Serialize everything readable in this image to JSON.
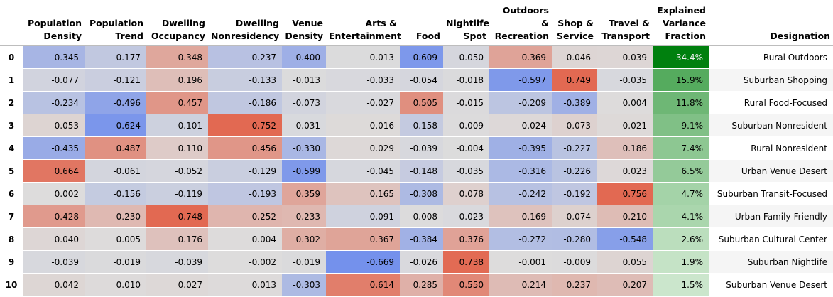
{
  "columns": [
    "Population Density",
    "Population Trend",
    "Dwelling Occupancy",
    "Dwelling Nonresidency",
    "Venue Density",
    "Arts & Entertainment",
    "Food",
    "Nightlife Spot",
    "Outdoors & Recreation",
    "Shop & Service",
    "Travel & Transport"
  ],
  "header_lines": [
    [
      "Population",
      "Density"
    ],
    [
      "Population",
      "Trend"
    ],
    [
      "Dwelling",
      "Occupancy"
    ],
    [
      "Dwelling",
      "Nonresidency"
    ],
    [
      "Venue",
      "Density"
    ],
    [
      "Arts &",
      "Entertainment"
    ],
    [
      "Food"
    ],
    [
      "Nightlife",
      "Spot"
    ],
    [
      "Outdoors",
      "&",
      "Recreation"
    ],
    [
      "Shop &",
      "Service"
    ],
    [
      "Travel &",
      "Transport"
    ]
  ],
  "fraction_header_lines": [
    "Explained",
    "Variance",
    "Fraction"
  ],
  "designation_header": "Designation",
  "rows": [
    {
      "index": "0",
      "values": [
        "-0.345",
        "-0.177",
        "0.348",
        "-0.237",
        "-0.400",
        "-0.013",
        "-0.609",
        "-0.050",
        "0.369",
        "0.046",
        "0.039"
      ],
      "fraction": "34.4%",
      "fraction_value": 0.344,
      "designation": "Rural Outdoors"
    },
    {
      "index": "1",
      "values": [
        "-0.077",
        "-0.121",
        "0.196",
        "-0.133",
        "-0.013",
        "-0.033",
        "-0.054",
        "-0.018",
        "-0.597",
        "0.749",
        "-0.035"
      ],
      "fraction": "15.9%",
      "fraction_value": 0.159,
      "designation": "Suburban Shopping"
    },
    {
      "index": "2",
      "values": [
        "-0.234",
        "-0.496",
        "0.457",
        "-0.186",
        "-0.073",
        "-0.027",
        "0.505",
        "-0.015",
        "-0.209",
        "-0.389",
        "0.004"
      ],
      "fraction": "11.8%",
      "fraction_value": 0.118,
      "designation": "Rural Food-Focused"
    },
    {
      "index": "3",
      "values": [
        "0.053",
        "-0.624",
        "-0.101",
        "0.752",
        "-0.031",
        "0.016",
        "-0.158",
        "-0.009",
        "0.024",
        "0.073",
        "0.021"
      ],
      "fraction": "9.1%",
      "fraction_value": 0.091,
      "designation": "Suburban Nonresident"
    },
    {
      "index": "4",
      "values": [
        "-0.435",
        "0.487",
        "0.110",
        "0.456",
        "-0.330",
        "0.029",
        "-0.039",
        "-0.004",
        "-0.395",
        "-0.227",
        "0.186"
      ],
      "fraction": "7.4%",
      "fraction_value": 0.074,
      "designation": "Rural Nonresident"
    },
    {
      "index": "5",
      "values": [
        "0.664",
        "-0.061",
        "-0.052",
        "-0.129",
        "-0.599",
        "-0.045",
        "-0.148",
        "-0.035",
        "-0.316",
        "-0.226",
        "0.023"
      ],
      "fraction": "6.5%",
      "fraction_value": 0.065,
      "designation": "Urban Venue Desert"
    },
    {
      "index": "6",
      "values": [
        "0.002",
        "-0.156",
        "-0.119",
        "-0.193",
        "0.359",
        "0.165",
        "-0.308",
        "0.078",
        "-0.242",
        "-0.192",
        "0.756"
      ],
      "fraction": "4.7%",
      "fraction_value": 0.047,
      "designation": "Suburban Transit-Focused"
    },
    {
      "index": "7",
      "values": [
        "0.428",
        "0.230",
        "0.748",
        "0.252",
        "0.233",
        "-0.091",
        "-0.008",
        "-0.023",
        "0.169",
        "0.074",
        "0.210"
      ],
      "fraction": "4.1%",
      "fraction_value": 0.041,
      "designation": "Urban Family-Friendly"
    },
    {
      "index": "8",
      "values": [
        "0.040",
        "0.005",
        "0.176",
        "0.004",
        "0.302",
        "0.367",
        "-0.384",
        "0.376",
        "-0.272",
        "-0.280",
        "-0.548"
      ],
      "fraction": "2.6%",
      "fraction_value": 0.026,
      "designation": "Suburban Cultural Center"
    },
    {
      "index": "9",
      "values": [
        "-0.039",
        "-0.019",
        "-0.039",
        "-0.002",
        "-0.019",
        "-0.669",
        "-0.026",
        "0.738",
        "-0.001",
        "-0.009",
        "0.055"
      ],
      "fraction": "1.9%",
      "fraction_value": 0.019,
      "designation": "Suburban Nightlife"
    },
    {
      "index": "10",
      "values": [
        "0.042",
        "0.010",
        "0.027",
        "0.013",
        "-0.303",
        "0.614",
        "0.285",
        "0.550",
        "0.214",
        "0.237",
        "0.207"
      ],
      "fraction": "1.5%",
      "fraction_value": 0.015,
      "designation": "Suburban Venue Desert"
    }
  ],
  "colors": {
    "coolwarm_low": "#6788ee",
    "coolwarm_mid": "#dddcdc",
    "coolwarm_high": "#e26952",
    "greens_low": "#f7fcf5",
    "greens_high": "#00800e",
    "designation_stripe": "#f5f5f5"
  }
}
